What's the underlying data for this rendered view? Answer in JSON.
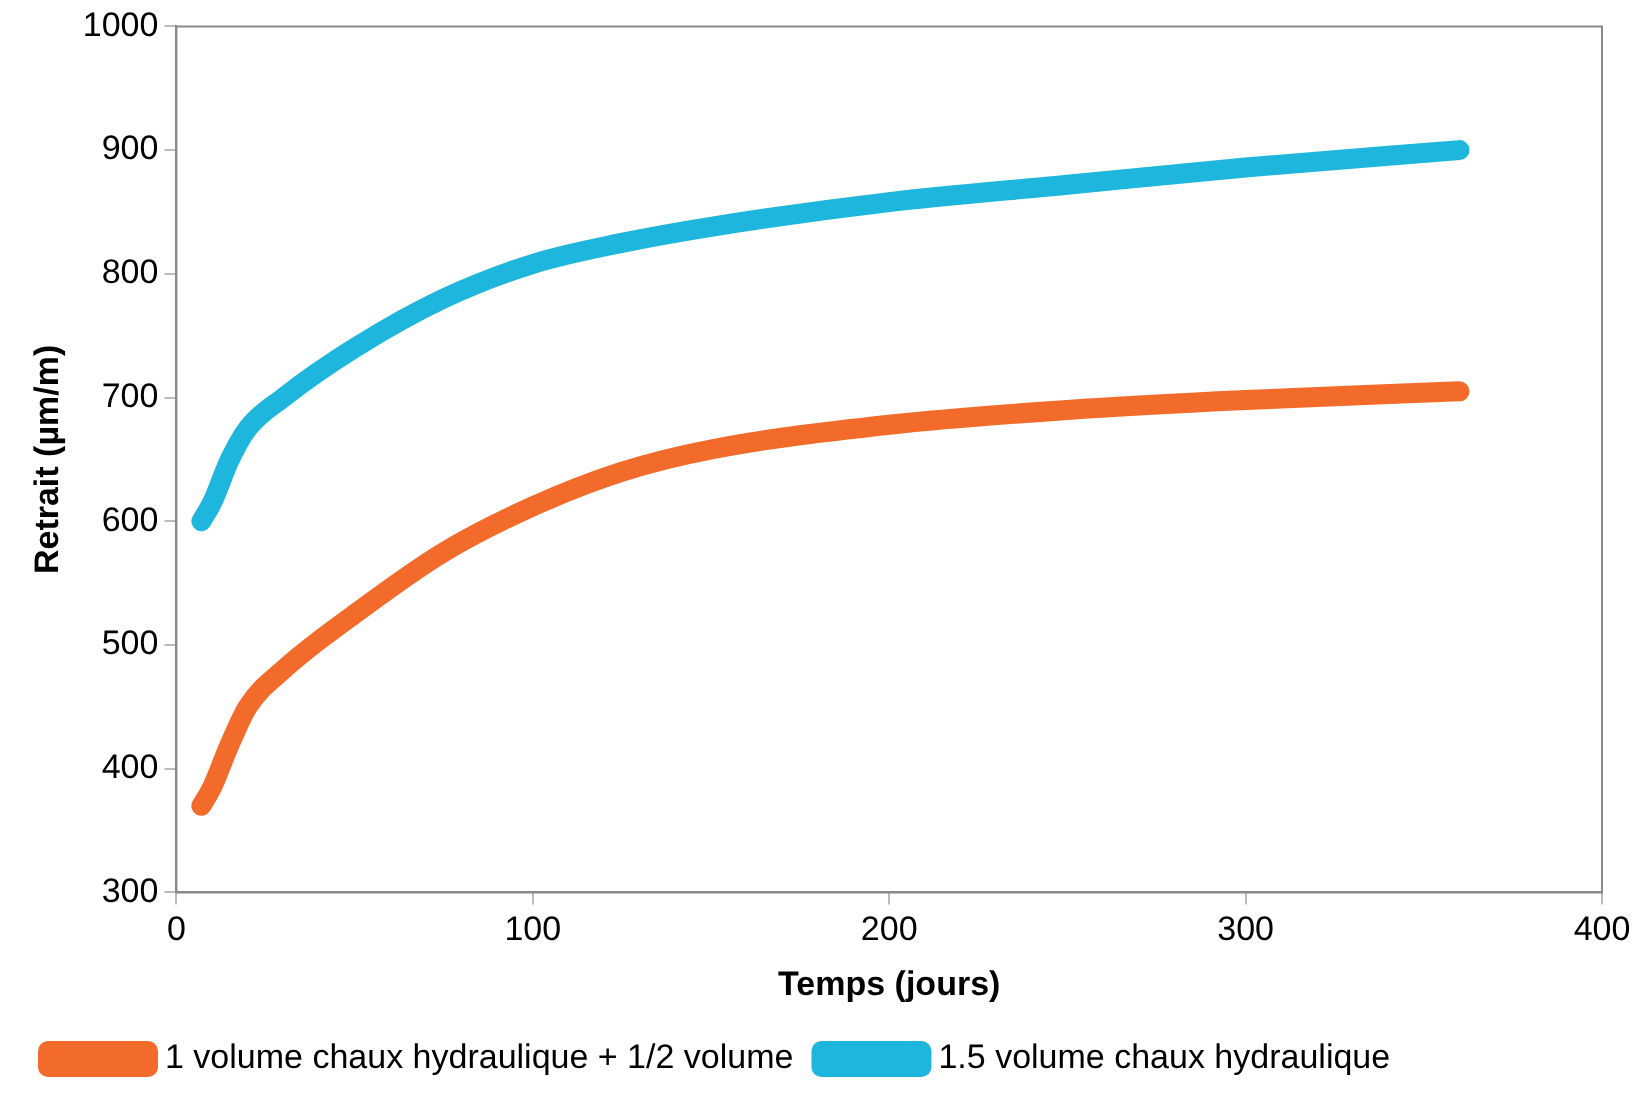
{
  "chart_data": {
    "type": "line",
    "xlabel": "Temps (jours)",
    "ylabel": "Retrait (µm/m)",
    "xlim": [
      0,
      400
    ],
    "xticks": [
      0,
      100,
      200,
      300,
      400
    ],
    "ylim": [
      300,
      1000
    ],
    "yticks": [
      300,
      400,
      500,
      600,
      700,
      800,
      900,
      1000
    ],
    "grid": false,
    "legend": "bottom",
    "marker": "none",
    "line_style": "solid",
    "series": [
      {
        "name": "1 volume chaux hydraulique + 1/2 volume",
        "color": "#f26b2a",
        "x": [
          7,
          10,
          15,
          20,
          30,
          50,
          75,
          100,
          125,
          150,
          200,
          250,
          300,
          360
        ],
        "values": [
          370,
          385,
          420,
          450,
          480,
          525,
          575,
          612,
          640,
          658,
          678,
          690,
          698,
          705
        ]
      },
      {
        "name": "1.5 volume chaux hydraulique",
        "color": "#1fb6dd",
        "x": [
          7,
          10,
          15,
          20,
          30,
          50,
          75,
          100,
          125,
          150,
          200,
          250,
          300,
          360
        ],
        "values": [
          600,
          615,
          650,
          675,
          700,
          740,
          780,
          808,
          825,
          838,
          858,
          872,
          886,
          900
        ]
      }
    ]
  }
}
